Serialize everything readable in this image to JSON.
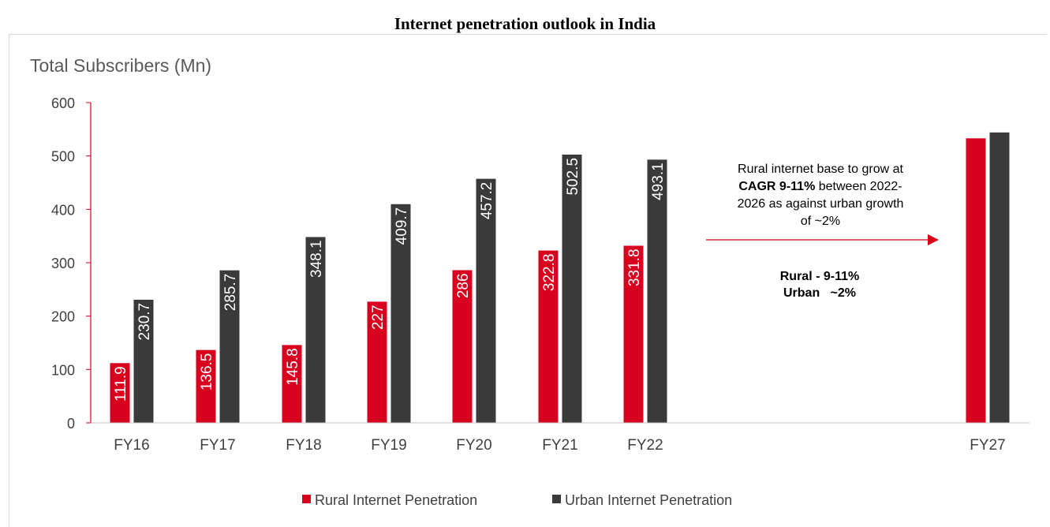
{
  "page_title": "Internet penetration outlook in India",
  "chart_data": {
    "type": "bar",
    "title": "Total Subscribers (Mn)",
    "categories": [
      "FY16",
      "FY17",
      "FY18",
      "FY19",
      "FY20",
      "FY21",
      "FY22",
      "FY27"
    ],
    "series": [
      {
        "name": "Rural Internet Penetration",
        "color": "#d7001e",
        "values": [
          111.9,
          136.5,
          145.8,
          227,
          286,
          322.8,
          331.8,
          533
        ],
        "labels": [
          "111.9",
          "136.5",
          "145.8",
          "227",
          "286",
          "322.8",
          "331.8",
          ""
        ]
      },
      {
        "name": "Urban Internet Penetration",
        "color": "#3a3a3a",
        "values": [
          230.7,
          285.7,
          348.1,
          409.7,
          457.2,
          502.5,
          493.1,
          544
        ],
        "labels": [
          "230.7",
          "285.7",
          "348.1",
          "409.7",
          "457.2",
          "502.5",
          "493.1",
          ""
        ]
      }
    ],
    "ylim": [
      0,
      600
    ],
    "yticks": [
      0,
      100,
      200,
      300,
      400,
      500,
      600
    ],
    "legend_position": "bottom",
    "annotation": {
      "lines": [
        [
          {
            "text": "Rural internet base to grow at",
            "bold": false
          }
        ],
        [
          {
            "text": "CAGR 9-11%",
            "bold": true
          },
          {
            "text": " between 2022-",
            "bold": false
          }
        ],
        [
          {
            "text": "2026 as against urban growth",
            "bold": false
          }
        ],
        [
          {
            "text": "of ~2%",
            "bold": false
          }
        ]
      ],
      "summary": [
        "Rural - 9-11%",
        "Urban   ~2%"
      ],
      "arrow_color": "#d7001e"
    }
  }
}
